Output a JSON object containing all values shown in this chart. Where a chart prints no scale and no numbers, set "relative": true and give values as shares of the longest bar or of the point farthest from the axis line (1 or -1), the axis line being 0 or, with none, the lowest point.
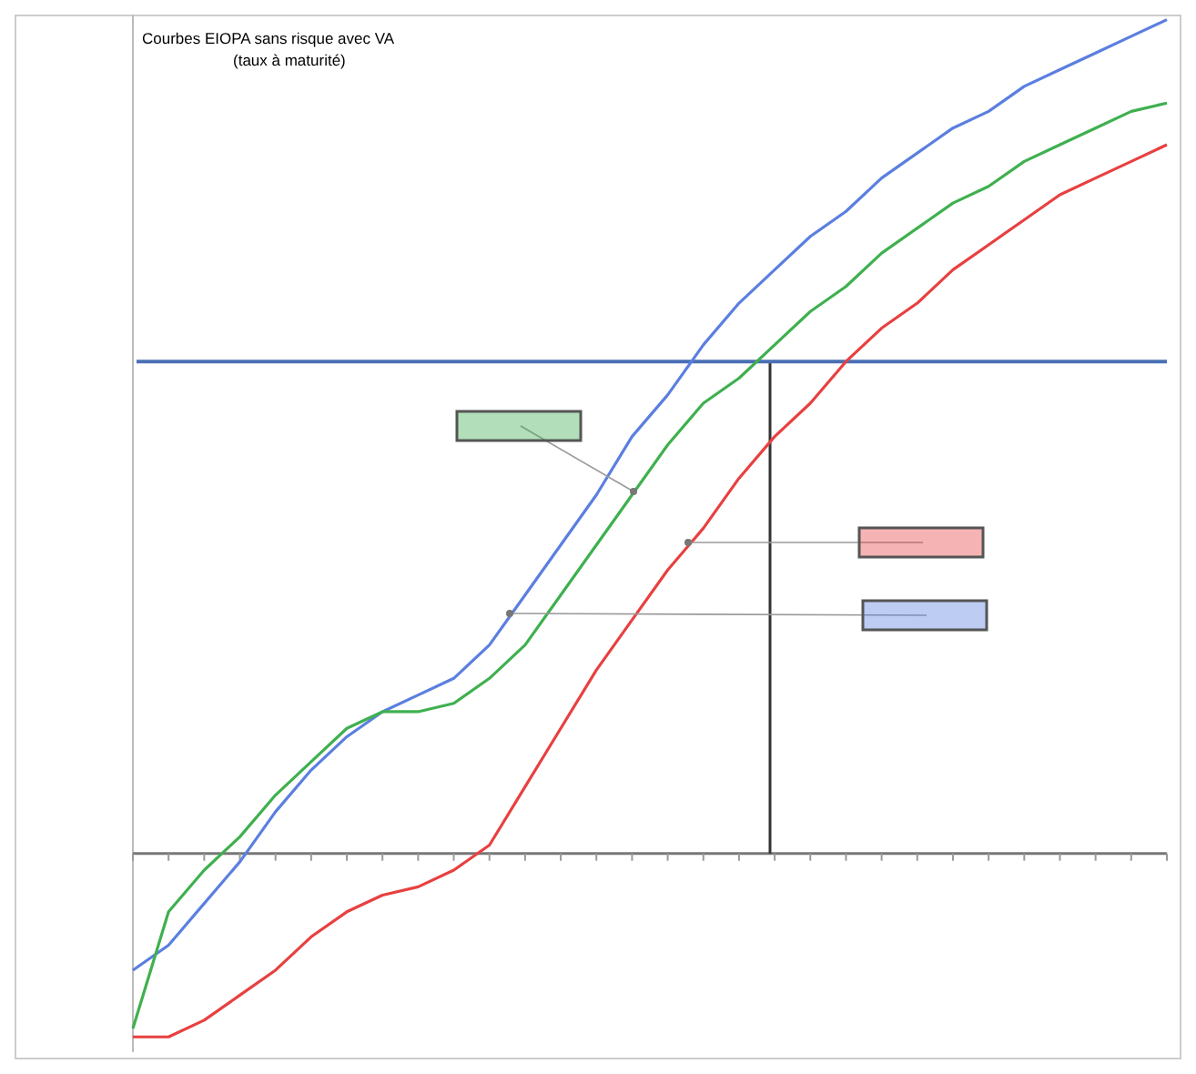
{
  "chart_data": {
    "type": "line",
    "title": "Courbes EIOPA sans risque avec VA",
    "subtitle": "(taux à maturité)",
    "relative": true,
    "marker": "none",
    "line_style": "solid",
    "categories": [
      null,
      null,
      null,
      null,
      null,
      null,
      null,
      null,
      null,
      null,
      null,
      null,
      null,
      null,
      null,
      null,
      null,
      null,
      null,
      null,
      null,
      null,
      null,
      null,
      null,
      null,
      null,
      null,
      null,
      null
    ],
    "series": [
      {
        "color": "#5b7fe0",
        "values": [
          -0.14,
          -0.11,
          -0.06,
          -0.01,
          0.05,
          0.1,
          0.14,
          0.17,
          0.19,
          0.21,
          0.25,
          0.31,
          0.37,
          0.43,
          0.5,
          0.55,
          0.61,
          0.66,
          0.7,
          0.74,
          0.77,
          0.81,
          0.84,
          0.87,
          0.89,
          0.92,
          0.94,
          0.96,
          0.98,
          1
        ]
      },
      {
        "color": "#3fb04f",
        "values": [
          -0.21,
          -0.07,
          -0.02,
          0.02,
          0.07,
          0.11,
          0.15,
          0.17,
          0.17,
          0.18,
          0.21,
          0.25,
          0.31,
          0.37,
          0.43,
          0.49,
          0.54,
          0.57,
          0.61,
          0.65,
          0.68,
          0.72,
          0.75,
          0.78,
          0.8,
          0.83,
          0.85,
          0.87,
          0.89,
          0.9
        ]
      },
      {
        "color": "#e84040",
        "values": [
          -0.22,
          -0.22,
          -0.2,
          -0.17,
          -0.14,
          -0.1,
          -0.07,
          -0.05,
          -0.04,
          -0.02,
          0.01,
          0.08,
          0.15,
          0.22,
          0.28,
          0.34,
          0.39,
          0.45,
          0.5,
          0.54,
          0.59,
          0.63,
          0.66,
          0.7,
          0.73,
          0.76,
          0.79,
          0.81,
          0.83,
          0.85
        ]
      }
    ],
    "ref_lines": [
      {
        "axis": "y",
        "value": 0.59,
        "color": "#4a6fb5"
      }
    ]
  }
}
